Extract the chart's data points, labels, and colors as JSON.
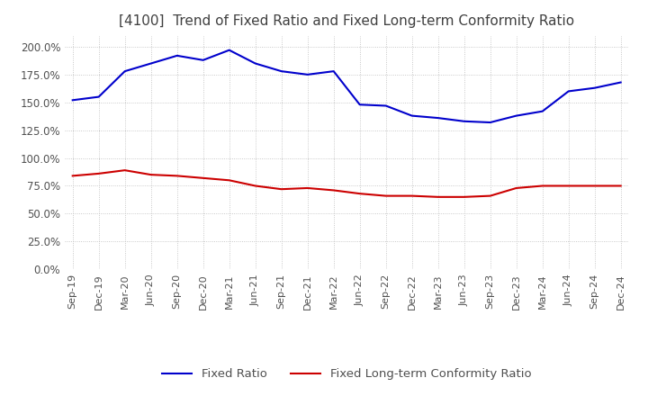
{
  "title": "[4100]  Trend of Fixed Ratio and Fixed Long-term Conformity Ratio",
  "title_fontsize": 11,
  "title_color": "#404040",
  "x_labels": [
    "Sep-19",
    "Dec-19",
    "Mar-20",
    "Jun-20",
    "Sep-20",
    "Dec-20",
    "Mar-21",
    "Jun-21",
    "Sep-21",
    "Dec-21",
    "Mar-22",
    "Jun-22",
    "Sep-22",
    "Dec-22",
    "Mar-23",
    "Jun-23",
    "Sep-23",
    "Dec-23",
    "Mar-24",
    "Jun-24",
    "Sep-24",
    "Dec-24"
  ],
  "fixed_ratio": [
    152,
    155,
    178,
    185,
    192,
    188,
    197,
    185,
    178,
    175,
    178,
    148,
    147,
    138,
    136,
    133,
    132,
    138,
    142,
    160,
    163,
    168
  ],
  "fixed_lt_ratio": [
    84,
    86,
    89,
    85,
    84,
    82,
    80,
    75,
    72,
    73,
    71,
    68,
    66,
    66,
    65,
    65,
    66,
    73,
    75,
    75,
    75,
    75
  ],
  "fixed_ratio_color": "#0000cc",
  "fixed_lt_ratio_color": "#cc0000",
  "ylim": [
    0,
    210
  ],
  "yticks": [
    0,
    25,
    50,
    75,
    100,
    125,
    150,
    175,
    200
  ],
  "background_color": "#ffffff",
  "grid_color": "#bbbbbb",
  "legend_fixed_ratio": "Fixed Ratio",
  "legend_fixed_lt_ratio": "Fixed Long-term Conformity Ratio"
}
